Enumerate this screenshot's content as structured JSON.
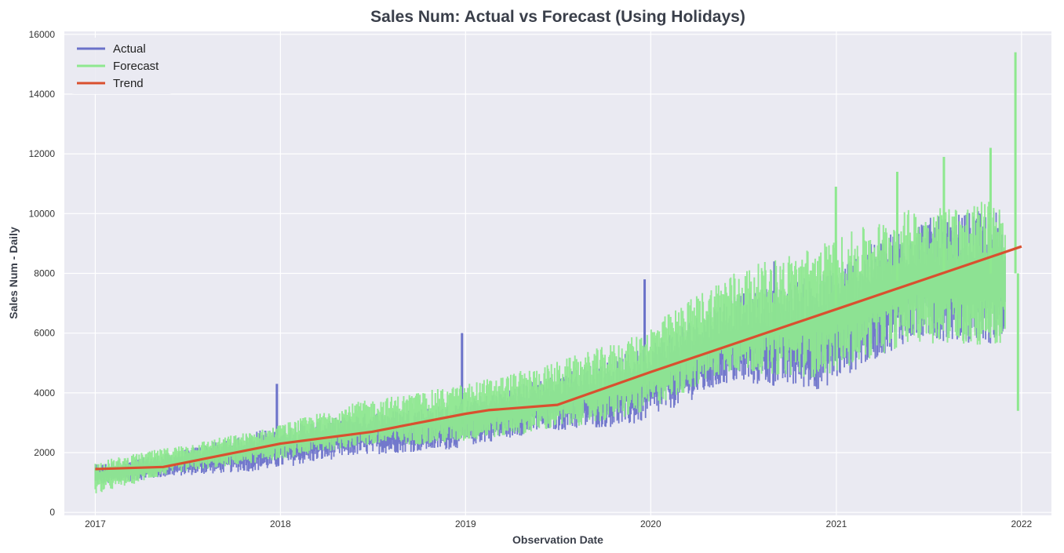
{
  "chart_data": {
    "type": "line",
    "title": "Sales Num: Actual vs Forecast (Using Holidays)",
    "xlabel": "Observation Date",
    "ylabel": "Sales Num - Daily",
    "xlim": [
      "2016-11-01",
      "2022-03-01"
    ],
    "ylim": [
      -100,
      16100
    ],
    "x_ticks": [
      "2017",
      "2018",
      "2019",
      "2020",
      "2021",
      "2022"
    ],
    "y_ticks": [
      0,
      2000,
      4000,
      6000,
      8000,
      10000,
      12000,
      14000,
      16000
    ],
    "grid": true,
    "legend": "top-left",
    "colors": {
      "plot_background": "#eaeaf2",
      "grid": "#ffffff",
      "actual": "#6b72c9",
      "forecast": "#8ee88f",
      "trend": "#d9502f"
    },
    "series": [
      {
        "name": "Actual",
        "x": [
          "2017-01-01",
          "2017-06-01",
          "2017-12-01",
          "2018-06-01",
          "2018-12-01",
          "2019-06-01",
          "2019-12-01",
          "2020-06-01",
          "2020-12-01",
          "2021-06-01",
          "2021-12-01"
        ],
        "band_low": [
          900,
          1200,
          1400,
          1900,
          2100,
          2700,
          2900,
          4300,
          4100,
          5800,
          5600
        ],
        "band_high": [
          1600,
          2000,
          2800,
          3300,
          3600,
          4500,
          5400,
          7200,
          8000,
          9800,
          10200
        ],
        "spikes": [
          {
            "x": "2017-12-25",
            "y": 4300
          },
          {
            "x": "2018-12-25",
            "y": 6000
          },
          {
            "x": "2019-12-20",
            "y": 7800
          },
          {
            "x": "2020-09-01",
            "y": 8400
          }
        ]
      },
      {
        "name": "Forecast",
        "x": [
          "2017-01-01",
          "2017-06-01",
          "2017-12-01",
          "2018-06-01",
          "2018-12-01",
          "2019-06-01",
          "2019-12-01",
          "2020-06-01",
          "2020-12-01",
          "2021-06-01",
          "2021-12-01"
        ],
        "band_low": [
          600,
          1300,
          1700,
          2200,
          2300,
          2700,
          3200,
          4700,
          4500,
          5700,
          5500
        ],
        "band_high": [
          1700,
          2200,
          2800,
          3700,
          4200,
          4900,
          5900,
          8000,
          9000,
          10200,
          10500
        ],
        "spikes": [
          {
            "x": "2020-12-31",
            "y": 10900
          },
          {
            "x": "2021-05-01",
            "y": 11400
          },
          {
            "x": "2021-08-01",
            "y": 11900
          },
          {
            "x": "2021-11-01",
            "y": 12200
          },
          {
            "x": "2021-12-20",
            "y": 15400
          },
          {
            "x": "2021-12-25",
            "y": 3400
          }
        ]
      },
      {
        "name": "Trend",
        "x": [
          "2017-01-01",
          "2017-05-15",
          "2018-01-01",
          "2018-07-01",
          "2019-01-01",
          "2019-02-15",
          "2019-07-01",
          "2020-01-01",
          "2021-01-01",
          "2022-01-01"
        ],
        "values": [
          1450,
          1520,
          2300,
          2700,
          3300,
          3420,
          3600,
          4700,
          6800,
          8900
        ]
      }
    ]
  }
}
